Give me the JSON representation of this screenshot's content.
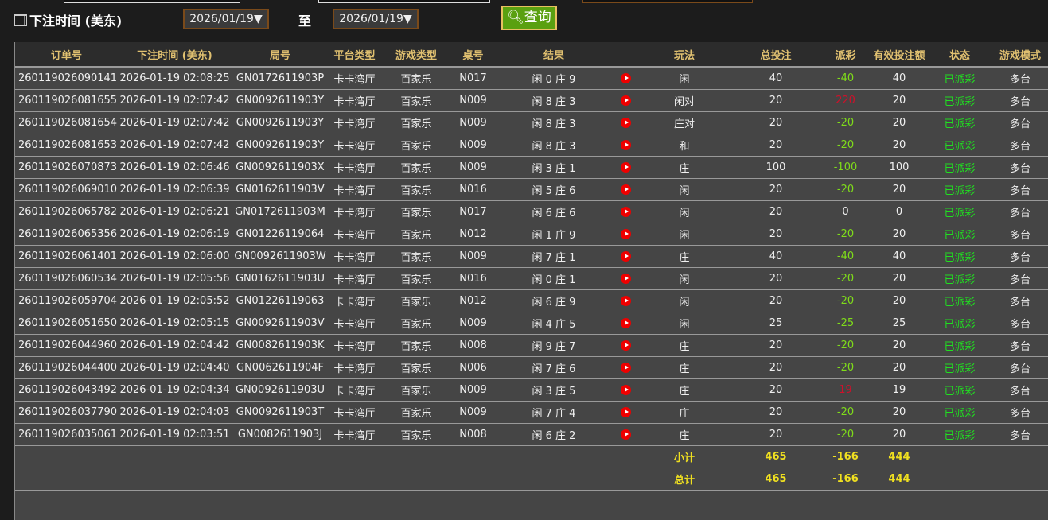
{
  "filter": {
    "label": "下注时间 (美东)",
    "start": "2026/01/19▼",
    "to": "至",
    "end": "2026/01/19▼",
    "query": "查询"
  },
  "columns": [
    "订单号",
    "下注时间 (美东)",
    "局号",
    "平台类型",
    "游戏类型",
    "桌号",
    "结果",
    "",
    "玩法",
    "总投注",
    "派彩",
    "有效投注额",
    "状态",
    "游戏模式"
  ],
  "rows": [
    [
      "260119026090141",
      "2026-01-19 02:08:25",
      "GN0172611903P",
      "卡卡湾厅",
      "百家乐",
      "N017",
      "闲 0 庄 9",
      "闲",
      "40",
      "-40",
      "40",
      "已派彩",
      "多台"
    ],
    [
      "260119026081655",
      "2026-01-19 02:07:42",
      "GN0092611903Y",
      "卡卡湾厅",
      "百家乐",
      "N009",
      "闲 8 庄 3",
      "闲对",
      "20",
      "220",
      "20",
      "已派彩",
      "多台"
    ],
    [
      "260119026081654",
      "2026-01-19 02:07:42",
      "GN0092611903Y",
      "卡卡湾厅",
      "百家乐",
      "N009",
      "闲 8 庄 3",
      "庄对",
      "20",
      "-20",
      "20",
      "已派彩",
      "多台"
    ],
    [
      "260119026081653",
      "2026-01-19 02:07:42",
      "GN0092611903Y",
      "卡卡湾厅",
      "百家乐",
      "N009",
      "闲 8 庄 3",
      "和",
      "20",
      "-20",
      "20",
      "已派彩",
      "多台"
    ],
    [
      "260119026070873",
      "2026-01-19 02:06:46",
      "GN0092611903X",
      "卡卡湾厅",
      "百家乐",
      "N009",
      "闲 3 庄 1",
      "庄",
      "100",
      "-100",
      "100",
      "已派彩",
      "多台"
    ],
    [
      "260119026069010",
      "2026-01-19 02:06:39",
      "GN0162611903V",
      "卡卡湾厅",
      "百家乐",
      "N016",
      "闲 5 庄 6",
      "闲",
      "20",
      "-20",
      "20",
      "已派彩",
      "多台"
    ],
    [
      "260119026065782",
      "2026-01-19 02:06:21",
      "GN0172611903M",
      "卡卡湾厅",
      "百家乐",
      "N017",
      "闲 6 庄 6",
      "闲",
      "20",
      "0",
      "0",
      "已派彩",
      "多台"
    ],
    [
      "260119026065356",
      "2026-01-19 02:06:19",
      "GN01226119064",
      "卡卡湾厅",
      "百家乐",
      "N012",
      "闲 1 庄 9",
      "闲",
      "20",
      "-20",
      "20",
      "已派彩",
      "多台"
    ],
    [
      "260119026061401",
      "2026-01-19 02:06:00",
      "GN0092611903W",
      "卡卡湾厅",
      "百家乐",
      "N009",
      "闲 7 庄 1",
      "庄",
      "40",
      "-40",
      "40",
      "已派彩",
      "多台"
    ],
    [
      "260119026060534",
      "2026-01-19 02:05:56",
      "GN0162611903U",
      "卡卡湾厅",
      "百家乐",
      "N016",
      "闲 0 庄 1",
      "闲",
      "20",
      "-20",
      "20",
      "已派彩",
      "多台"
    ],
    [
      "260119026059704",
      "2026-01-19 02:05:52",
      "GN01226119063",
      "卡卡湾厅",
      "百家乐",
      "N012",
      "闲 6 庄 9",
      "闲",
      "20",
      "-20",
      "20",
      "已派彩",
      "多台"
    ],
    [
      "260119026051650",
      "2026-01-19 02:05:15",
      "GN0092611903V",
      "卡卡湾厅",
      "百家乐",
      "N009",
      "闲 4 庄 5",
      "闲",
      "25",
      "-25",
      "25",
      "已派彩",
      "多台"
    ],
    [
      "260119026044960",
      "2026-01-19 02:04:42",
      "GN0082611903K",
      "卡卡湾厅",
      "百家乐",
      "N008",
      "闲 9 庄 7",
      "庄",
      "20",
      "-20",
      "20",
      "已派彩",
      "多台"
    ],
    [
      "260119026044400",
      "2026-01-19 02:04:40",
      "GN0062611904F",
      "卡卡湾厅",
      "百家乐",
      "N006",
      "闲 7 庄 6",
      "庄",
      "20",
      "-20",
      "20",
      "已派彩",
      "多台"
    ],
    [
      "260119026043492",
      "2026-01-19 02:04:34",
      "GN0092611903U",
      "卡卡湾厅",
      "百家乐",
      "N009",
      "闲 3 庄 5",
      "庄",
      "20",
      "19",
      "19",
      "已派彩",
      "多台"
    ],
    [
      "260119026037790",
      "2026-01-19 02:04:03",
      "GN0092611903T",
      "卡卡湾厅",
      "百家乐",
      "N009",
      "闲 7 庄 4",
      "庄",
      "20",
      "-20",
      "20",
      "已派彩",
      "多台"
    ],
    [
      "260119026035061",
      "2026-01-19 02:03:51",
      "GN0082611903J",
      "卡卡湾厅",
      "百家乐",
      "N008",
      "闲 6 庄 2",
      "庄",
      "20",
      "-20",
      "20",
      "已派彩",
      "多台"
    ]
  ],
  "subtotal": {
    "label": "小计",
    "total": "465",
    "payout": "-166",
    "valid": "444"
  },
  "grandtotal": {
    "label": "总计",
    "total": "465",
    "payout": "-166",
    "valid": "444"
  },
  "colors": {
    "negative": "#7fdc1a",
    "positive": "#d0102a",
    "status": "#20e020",
    "header": "#e0c070",
    "summary": "#f0e020"
  }
}
